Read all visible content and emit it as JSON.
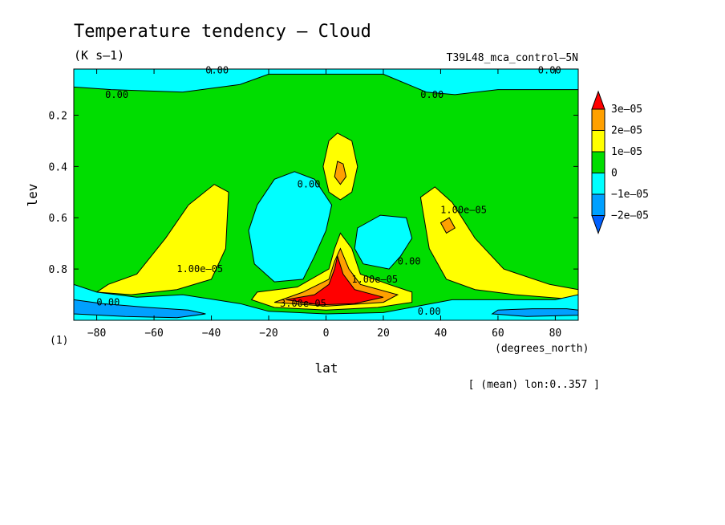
{
  "chart_data": {
    "type": "heatmap",
    "title": "Temperature tendency — Cloud",
    "units": "(K s–1)",
    "dataset": "T39L48_mca_control–5N",
    "xlabel": "lat",
    "x_units": "(degrees_north)",
    "ylabel": "lev",
    "y_units": "(1)",
    "footer": "[ (mean) lon:0..357 ]",
    "xlim": [
      -88,
      88
    ],
    "ylim": [
      1.0,
      0.02
    ],
    "x_ticks": [
      -80,
      -60,
      -40,
      -20,
      0,
      20,
      40,
      60,
      80
    ],
    "x_tick_labels": [
      "−80",
      "−60",
      "−40",
      "−20",
      "0",
      "20",
      "40",
      "60",
      "80"
    ],
    "y_ticks": [
      0.2,
      0.4,
      0.6,
      0.8
    ],
    "y_tick_labels": [
      "0.2",
      "0.4",
      "0.6",
      "0.8"
    ],
    "colorbar": {
      "labels": [
        "3e–05",
        "2e–05",
        "1e–05",
        "0",
        "−1e–05",
        "−2e–05"
      ],
      "colors": [
        "#ff0000",
        "#ffa000",
        "#ffff00",
        "#00dd00",
        "#00ffff",
        "#00a0ff",
        "#0060ff"
      ]
    },
    "contour_labels": [
      {
        "text": "0.00",
        "lat": -38,
        "lev": 0.025
      },
      {
        "text": "0.00",
        "lat": 78,
        "lev": 0.025
      },
      {
        "text": "0.00",
        "lat": -73,
        "lev": 0.12
      },
      {
        "text": "0.00",
        "lat": 37,
        "lev": 0.12
      },
      {
        "text": "0.00",
        "lat": -6,
        "lev": 0.47
      },
      {
        "text": "1.00e–05",
        "lat": 48,
        "lev": 0.57
      },
      {
        "text": "1.00e–05",
        "lat": -44,
        "lev": 0.8
      },
      {
        "text": "0.00",
        "lat": 29,
        "lev": 0.77
      },
      {
        "text": "1.00e–05",
        "lat": 17,
        "lev": 0.84
      },
      {
        "text": "0.00",
        "lat": -76,
        "lev": 0.93
      },
      {
        "text": "3.00e–05",
        "lat": -8,
        "lev": 0.935
      },
      {
        "text": "0.00",
        "lat": 36,
        "lev": 0.965
      }
    ],
    "regions": [
      {
        "name": "upper-negative",
        "value": -5e-06,
        "color": "#00ffff",
        "points": [
          [
            -88,
            0.02
          ],
          [
            88,
            0.02
          ],
          [
            88,
            0.1
          ],
          [
            60,
            0.1
          ],
          [
            45,
            0.12
          ],
          [
            35,
            0.11
          ],
          [
            20,
            0.04
          ],
          [
            -20,
            0.04
          ],
          [
            -30,
            0.08
          ],
          [
            -50,
            0.11
          ],
          [
            -75,
            0.1
          ],
          [
            -88,
            0.09
          ]
        ]
      },
      {
        "name": "sh-tropics-negative",
        "value": -5e-06,
        "color": "#00ffff",
        "points": [
          [
            -24,
            0.55
          ],
          [
            -18,
            0.45
          ],
          [
            -11,
            0.42
          ],
          [
            -4,
            0.45
          ],
          [
            2,
            0.55
          ],
          [
            0,
            0.65
          ],
          [
            -4,
            0.75
          ],
          [
            -8,
            0.84
          ],
          [
            -18,
            0.85
          ],
          [
            -25,
            0.78
          ],
          [
            -27,
            0.65
          ]
        ]
      },
      {
        "name": "nh-tropics-negative",
        "value": -5e-06,
        "color": "#00ffff",
        "points": [
          [
            11,
            0.64
          ],
          [
            19,
            0.59
          ],
          [
            28,
            0.6
          ],
          [
            30,
            0.68
          ],
          [
            26,
            0.75
          ],
          [
            22,
            0.8
          ],
          [
            13,
            0.78
          ],
          [
            10,
            0.72
          ]
        ]
      },
      {
        "name": "nh-midlat-positive",
        "value": 1.5e-05,
        "color": "#ffff00",
        "points": [
          [
            33,
            0.52
          ],
          [
            38,
            0.48
          ],
          [
            44,
            0.54
          ],
          [
            52,
            0.68
          ],
          [
            62,
            0.8
          ],
          [
            78,
            0.86
          ],
          [
            88,
            0.88
          ],
          [
            88,
            0.92
          ],
          [
            66,
            0.9
          ],
          [
            52,
            0.88
          ],
          [
            42,
            0.84
          ],
          [
            36,
            0.72
          ]
        ]
      },
      {
        "name": "nh-midlat-core",
        "value": 2.2e-05,
        "color": "#ffa000",
        "points": [
          [
            40,
            0.62
          ],
          [
            43,
            0.6
          ],
          [
            45,
            0.64
          ],
          [
            42,
            0.66
          ]
        ]
      },
      {
        "name": "sh-midlat-positive",
        "value": 1.5e-05,
        "color": "#ffff00",
        "points": [
          [
            -34,
            0.5
          ],
          [
            -39,
            0.47
          ],
          [
            -48,
            0.55
          ],
          [
            -56,
            0.68
          ],
          [
            -66,
            0.82
          ],
          [
            -76,
            0.86
          ],
          [
            -80,
            0.89
          ],
          [
            -68,
            0.9
          ],
          [
            -52,
            0.88
          ],
          [
            -40,
            0.84
          ],
          [
            -35,
            0.72
          ]
        ]
      },
      {
        "name": "upper-tropics-positive",
        "value": 1.5e-05,
        "color": "#ffff00",
        "points": [
          [
            1,
            0.3
          ],
          [
            4,
            0.27
          ],
          [
            9,
            0.3
          ],
          [
            11,
            0.4
          ],
          [
            9,
            0.5
          ],
          [
            5,
            0.53
          ],
          [
            1,
            0.5
          ],
          [
            -1,
            0.4
          ]
        ]
      },
      {
        "name": "upper-tropics-core",
        "value": 2.2e-05,
        "color": "#ffa000",
        "points": [
          [
            4,
            0.38
          ],
          [
            6,
            0.39
          ],
          [
            7,
            0.44
          ],
          [
            5,
            0.47
          ],
          [
            3,
            0.44
          ]
        ]
      },
      {
        "name": "lower-tropics-positive",
        "value": 1.5e-05,
        "color": "#ffff00",
        "points": [
          [
            5,
            0.66
          ],
          [
            9,
            0.72
          ],
          [
            12,
            0.82
          ],
          [
            22,
            0.86
          ],
          [
            30,
            0.89
          ],
          [
            30,
            0.93
          ],
          [
            18,
            0.95
          ],
          [
            0,
            0.96
          ],
          [
            -18,
            0.95
          ],
          [
            -26,
            0.92
          ],
          [
            -24,
            0.89
          ],
          [
            -10,
            0.87
          ],
          [
            1,
            0.8
          ],
          [
            3,
            0.72
          ]
        ]
      },
      {
        "name": "lower-tropics-orange",
        "value": 2.2e-05,
        "color": "#ffa000",
        "points": [
          [
            5,
            0.72
          ],
          [
            8,
            0.8
          ],
          [
            12,
            0.86
          ],
          [
            25,
            0.9
          ],
          [
            20,
            0.93
          ],
          [
            0,
            0.945
          ],
          [
            -18,
            0.93
          ],
          [
            -8,
            0.89
          ],
          [
            1,
            0.84
          ],
          [
            3,
            0.77
          ]
        ]
      },
      {
        "name": "lower-tropics-max",
        "value": 3.2e-05,
        "color": "#ff0000",
        "points": [
          [
            4,
            0.75
          ],
          [
            6,
            0.82
          ],
          [
            10,
            0.88
          ],
          [
            20,
            0.91
          ],
          [
            10,
            0.935
          ],
          [
            -2,
            0.94
          ],
          [
            -14,
            0.92
          ],
          [
            -4,
            0.9
          ],
          [
            1,
            0.86
          ],
          [
            3,
            0.8
          ]
        ]
      },
      {
        "name": "surface-negative",
        "value": -8e-06,
        "color": "#00ffff",
        "points": [
          [
            -88,
            0.86
          ],
          [
            -80,
            0.89
          ],
          [
            -66,
            0.91
          ],
          [
            -50,
            0.9
          ],
          [
            -30,
            0.935
          ],
          [
            -20,
            0.965
          ],
          [
            0,
            0.975
          ],
          [
            20,
            0.97
          ],
          [
            32,
            0.945
          ],
          [
            44,
            0.92
          ],
          [
            62,
            0.92
          ],
          [
            80,
            0.92
          ],
          [
            88,
            0.9
          ],
          [
            88,
            1.0
          ],
          [
            -88,
            1.0
          ]
        ]
      },
      {
        "name": "surface-more-negative",
        "value": -1.5e-05,
        "color": "#00a0ff",
        "points": [
          [
            -88,
            0.92
          ],
          [
            -78,
            0.935
          ],
          [
            -62,
            0.95
          ],
          [
            -48,
            0.96
          ],
          [
            -42,
            0.975
          ],
          [
            -52,
            0.99
          ],
          [
            -70,
            0.985
          ],
          [
            -88,
            0.975
          ]
        ]
      },
      {
        "name": "surface-more-negative-nh",
        "value": -1.5e-05,
        "color": "#00a0ff",
        "points": [
          [
            60,
            0.96
          ],
          [
            72,
            0.955
          ],
          [
            84,
            0.955
          ],
          [
            88,
            0.96
          ],
          [
            88,
            0.98
          ],
          [
            70,
            0.985
          ],
          [
            58,
            0.975
          ]
        ]
      }
    ]
  }
}
